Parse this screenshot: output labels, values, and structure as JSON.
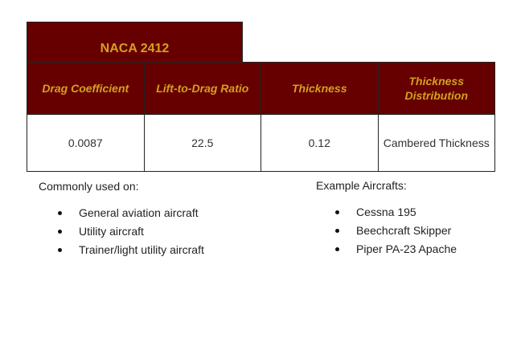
{
  "title": "NACA 2412",
  "table": {
    "headers": [
      "Drag Coefficient",
      "Lift-to-Drag Ratio",
      "Thickness",
      "Thickness Distribution"
    ],
    "row": [
      "0.0087",
      "22.5",
      "0.12",
      "Cambered Thickness"
    ]
  },
  "commonly_used": {
    "heading": "Commonly used on:",
    "items": [
      "General aviation aircraft",
      "Utility aircraft",
      "Trainer/light utility aircraft"
    ]
  },
  "examples": {
    "heading": "Example Aircrafts:",
    "items": [
      "Cessna 195",
      "Beechcraft Skipper",
      "Piper PA-23 Apache"
    ]
  },
  "colors": {
    "header_bg": "#660000",
    "header_text": "#d4a020"
  }
}
